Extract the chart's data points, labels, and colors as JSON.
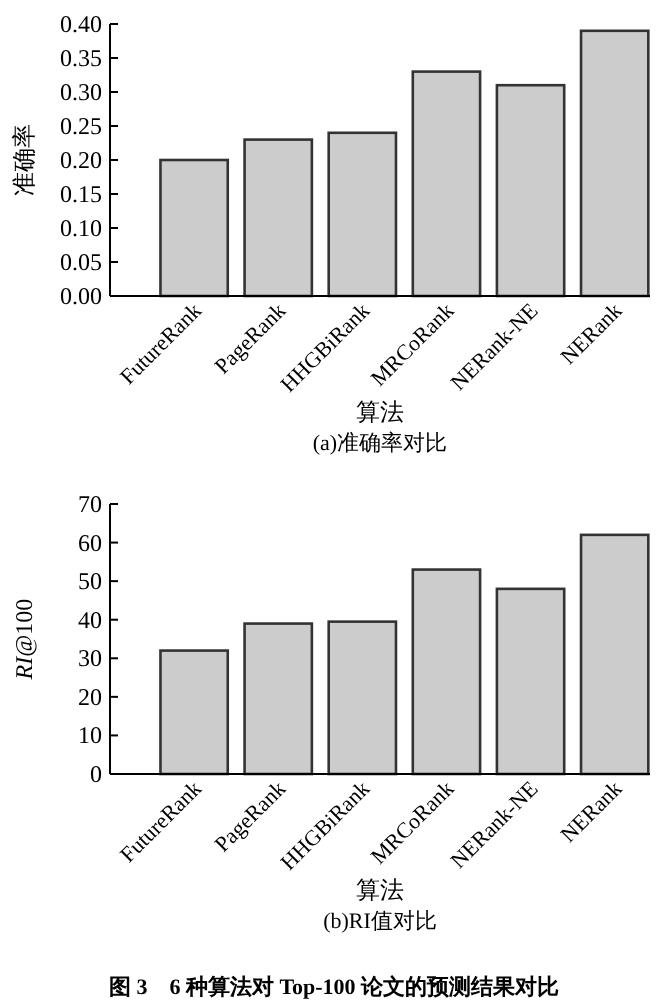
{
  "chart_data": [
    {
      "type": "bar",
      "title": "(a)准确率对比",
      "xlabel": "算法",
      "ylabel": "准确率",
      "categories": [
        "FutureRank",
        "PageRank",
        "HHGBiRank",
        "MRCoRank",
        "NERank-NE",
        "NERank"
      ],
      "values": [
        0.2,
        0.23,
        0.24,
        0.33,
        0.31,
        0.39
      ],
      "color": "#cccccc",
      "ylim": [
        0,
        0.4
      ],
      "yticks": [
        {
          "value": 0,
          "label": "0.00"
        },
        {
          "value": 0.05,
          "label": "0.05"
        },
        {
          "value": 0.1,
          "label": "0.10"
        },
        {
          "value": 0.15,
          "label": "0.15"
        },
        {
          "value": 0.2,
          "label": "0.20"
        },
        {
          "value": 0.25,
          "label": "0.25"
        },
        {
          "value": 0.3,
          "label": "0.30"
        },
        {
          "value": 0.35,
          "label": "0.35"
        },
        {
          "value": 0.4,
          "label": "0.40"
        }
      ]
    },
    {
      "type": "bar",
      "title": "(b)RI值对比",
      "xlabel": "算法",
      "ylabel": "*RI*@100",
      "categories": [
        "FutureRank",
        "PageRank",
        "HHGBiRank",
        "MRCoRank",
        "NERank-NE",
        "NERank"
      ],
      "values": [
        32,
        39,
        39.5,
        53,
        48,
        62
      ],
      "color": "#cccccc",
      "ylim": [
        0,
        70
      ],
      "yticks": [
        0,
        10,
        20,
        30,
        40,
        50,
        60,
        70
      ],
      "annotations": [
        "图 3　6 种算法对 Top-100 论文的预测结果对比"
      ]
    }
  ]
}
